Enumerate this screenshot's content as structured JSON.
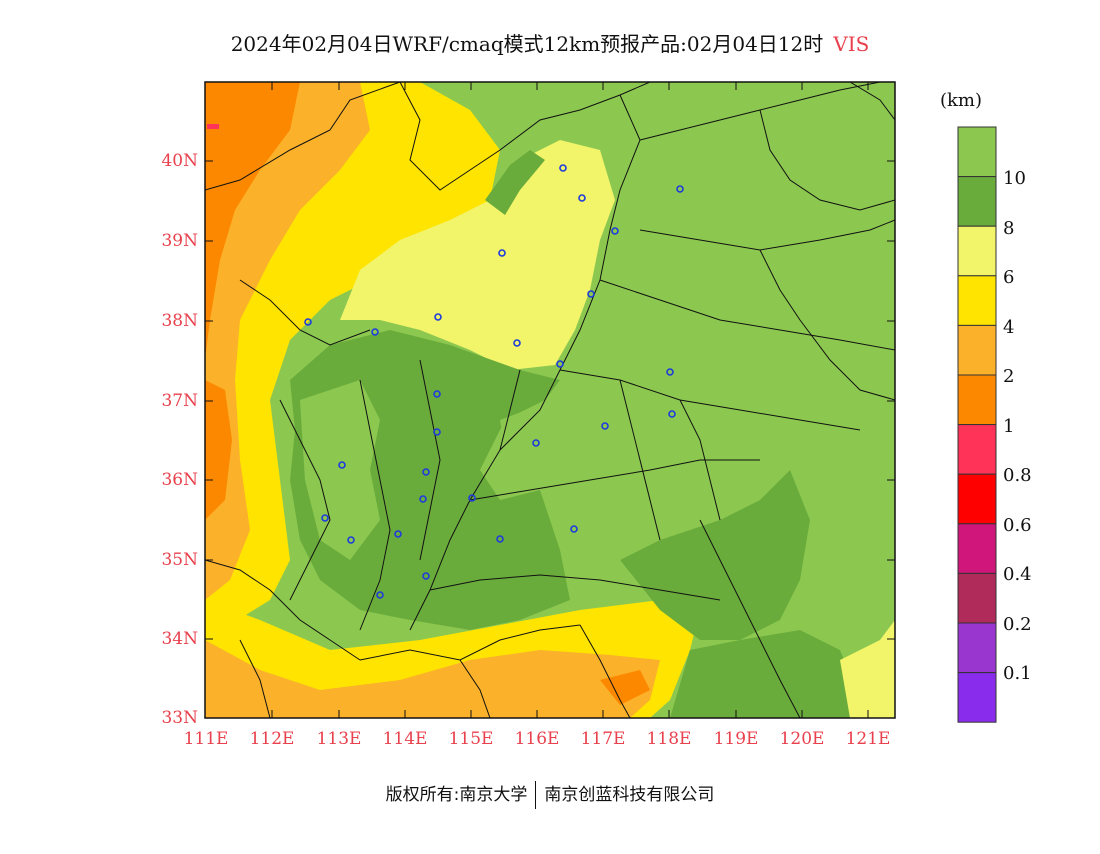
{
  "title": {
    "text": "2024年02月04日WRF/cmaq模式12km预报产品:02月04日12时",
    "variable": "VIS"
  },
  "colorbar": {
    "unit": "(km)",
    "levels": [
      {
        "label": "10",
        "color": "#6aac3c"
      },
      {
        "label": "8",
        "color": "#f2f46a"
      },
      {
        "label": "6",
        "color": "#ffe400"
      },
      {
        "label": "4",
        "color": "#fcb12a"
      },
      {
        "label": "2",
        "color": "#fc8800"
      },
      {
        "label": "1",
        "color": "#ff3258"
      },
      {
        "label": "0.8",
        "color": "#ff0000"
      },
      {
        "label": "0.6",
        "color": "#d0167a"
      },
      {
        "label": "0.4",
        "color": "#b02a5a"
      },
      {
        "label": "0.2",
        "color": "#9a36d0"
      },
      {
        "label": "0.1",
        "color": "#8a2cec"
      }
    ],
    "top_color": "#8cc850"
  },
  "axes": {
    "lat_labels": [
      "40N",
      "39N",
      "38N",
      "37N",
      "36N",
      "35N",
      "34N",
      "33N"
    ],
    "lon_labels": [
      "111E",
      "112E",
      "113E",
      "114E",
      "115E",
      "116E",
      "117E",
      "118E",
      "119E",
      "120E",
      "121E"
    ]
  },
  "footer": {
    "left": "版权所有:南京大学",
    "right": "南京创蓝科技有限公司"
  }
}
